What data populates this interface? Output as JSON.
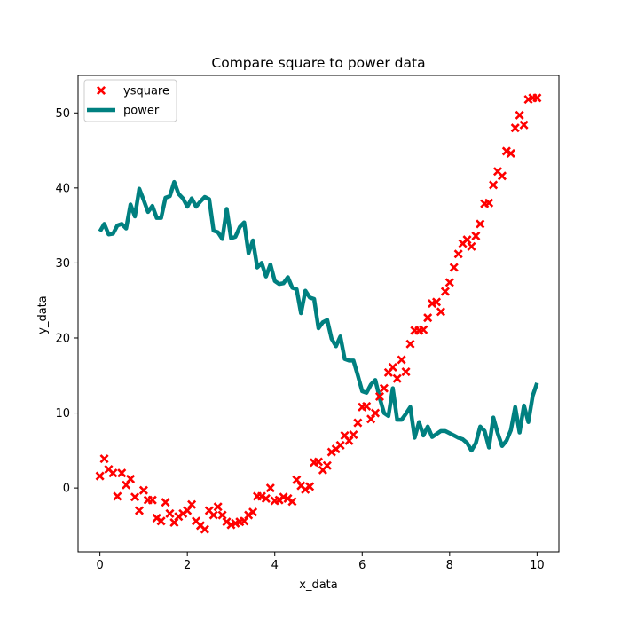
{
  "chart_data": {
    "type": "line",
    "title": "Compare square to power data",
    "xlabel": "x_data",
    "ylabel": "y_data",
    "xlim": [
      -0.5,
      10.5
    ],
    "ylim": [
      -8.5,
      55
    ],
    "xticks": [
      0,
      2,
      4,
      6,
      8,
      10
    ],
    "yticks": [
      0,
      10,
      20,
      30,
      40,
      50
    ],
    "grid": false,
    "legend_position": "top-left",
    "series": [
      {
        "name": "ysquare",
        "kind": "scatter",
        "marker": "x",
        "color": "#ff0000",
        "x": [
          0.0,
          0.1,
          0.2,
          0.3,
          0.4,
          0.5,
          0.6,
          0.7,
          0.8,
          0.9,
          1.0,
          1.1,
          1.2,
          1.3,
          1.4,
          1.5,
          1.6,
          1.7,
          1.8,
          1.9,
          2.0,
          2.1,
          2.2,
          2.3,
          2.4,
          2.5,
          2.6,
          2.7,
          2.8,
          2.9,
          3.0,
          3.1,
          3.2,
          3.3,
          3.4,
          3.5,
          3.6,
          3.7,
          3.8,
          3.9,
          4.0,
          4.1,
          4.2,
          4.3,
          4.4,
          4.5,
          4.6,
          4.7,
          4.8,
          4.9,
          5.0,
          5.1,
          5.2,
          5.3,
          5.4,
          5.5,
          5.6,
          5.7,
          5.8,
          5.9,
          6.0,
          6.1,
          6.2,
          6.3,
          6.4,
          6.5,
          6.6,
          6.7,
          6.8,
          6.9,
          7.0,
          7.1,
          7.2,
          7.3,
          7.4,
          7.5,
          7.6,
          7.7,
          7.8,
          7.9,
          8.0,
          8.1,
          8.2,
          8.3,
          8.4,
          8.5,
          8.6,
          8.7,
          8.8,
          8.9,
          9.0,
          9.1,
          9.2,
          9.3,
          9.4,
          9.5,
          9.6,
          9.7,
          9.8,
          9.9,
          10.0
        ],
        "y": [
          1.6,
          3.9,
          2.5,
          2.0,
          -1.1,
          2.0,
          0.4,
          1.2,
          -1.2,
          -3.0,
          -0.3,
          -1.6,
          -1.6,
          -4.0,
          -4.4,
          -1.9,
          -3.4,
          -4.6,
          -3.8,
          -3.4,
          -3.0,
          -2.2,
          -4.4,
          -5.0,
          -5.5,
          -3.0,
          -3.6,
          -2.5,
          -3.6,
          -4.5,
          -4.9,
          -4.7,
          -4.5,
          -4.4,
          -3.6,
          -3.2,
          -1.1,
          -1.1,
          -1.4,
          0.0,
          -1.7,
          -1.6,
          -1.2,
          -1.4,
          -1.8,
          1.1,
          0.3,
          -0.2,
          0.2,
          3.4,
          3.5,
          2.4,
          3.0,
          4.8,
          5.2,
          5.7,
          7.0,
          6.3,
          7.1,
          8.7,
          10.8,
          10.9,
          9.2,
          10.0,
          12.2,
          13.3,
          15.4,
          16.1,
          14.6,
          17.1,
          15.5,
          19.2,
          21.0,
          21.0,
          21.1,
          22.7,
          24.6,
          24.8,
          23.5,
          26.2,
          27.4,
          29.4,
          31.2,
          32.6,
          33.1,
          32.2,
          33.6,
          35.2,
          37.9,
          38.0,
          40.4,
          42.2,
          41.6,
          44.9,
          44.6,
          48.0,
          49.7,
          48.4,
          51.8,
          52.0,
          52.0
        ]
      },
      {
        "name": "power",
        "kind": "line",
        "color": "#008080",
        "x": [
          0.0,
          0.1,
          0.2,
          0.3,
          0.4,
          0.5,
          0.6,
          0.7,
          0.8,
          0.9,
          1.0,
          1.1,
          1.2,
          1.3,
          1.4,
          1.5,
          1.6,
          1.7,
          1.8,
          1.9,
          2.0,
          2.1,
          2.2,
          2.3,
          2.4,
          2.5,
          2.6,
          2.7,
          2.8,
          2.9,
          3.0,
          3.1,
          3.2,
          3.3,
          3.4,
          3.5,
          3.6,
          3.7,
          3.8,
          3.9,
          4.0,
          4.1,
          4.2,
          4.3,
          4.4,
          4.5,
          4.6,
          4.7,
          4.8,
          4.9,
          5.0,
          5.1,
          5.2,
          5.3,
          5.4,
          5.5,
          5.6,
          5.7,
          5.8,
          5.9,
          6.0,
          6.1,
          6.2,
          6.3,
          6.4,
          6.5,
          6.6,
          6.7,
          6.8,
          6.9,
          7.0,
          7.1,
          7.2,
          7.3,
          7.4,
          7.5,
          7.6,
          7.7,
          7.8,
          7.9,
          8.0,
          8.1,
          8.2,
          8.3,
          8.4,
          8.5,
          8.6,
          8.7,
          8.8,
          8.9,
          9.0,
          9.1,
          9.2,
          9.3,
          9.4,
          9.5,
          9.6,
          9.7,
          9.8,
          9.9,
          10.0
        ],
        "y": [
          34.2,
          35.2,
          33.8,
          33.9,
          35.0,
          35.2,
          34.6,
          37.8,
          36.2,
          39.9,
          38.4,
          36.8,
          37.6,
          36.0,
          36.0,
          38.7,
          38.9,
          40.8,
          39.2,
          38.6,
          37.5,
          38.6,
          37.5,
          38.2,
          38.8,
          38.5,
          34.3,
          34.1,
          33.2,
          37.2,
          33.3,
          33.5,
          34.8,
          35.4,
          31.3,
          33.0,
          29.4,
          30.0,
          28.2,
          29.8,
          27.6,
          27.2,
          27.3,
          28.1,
          26.7,
          26.5,
          23.3,
          26.3,
          25.4,
          25.2,
          21.3,
          22.1,
          22.4,
          19.9,
          18.9,
          20.2,
          17.2,
          17.0,
          17.0,
          15.0,
          12.9,
          12.7,
          13.8,
          14.4,
          12.0,
          10.0,
          9.6,
          13.3,
          9.1,
          9.1,
          9.9,
          10.8,
          6.7,
          8.8,
          7.0,
          8.2,
          6.8,
          7.2,
          7.6,
          7.6,
          7.3,
          7.0,
          6.7,
          6.5,
          6.0,
          5.0,
          6.0,
          8.2,
          7.6,
          5.4,
          9.4,
          7.3,
          5.6,
          6.3,
          7.7,
          10.8,
          7.4,
          11.0,
          8.8,
          12.3,
          14.0
        ]
      }
    ]
  }
}
